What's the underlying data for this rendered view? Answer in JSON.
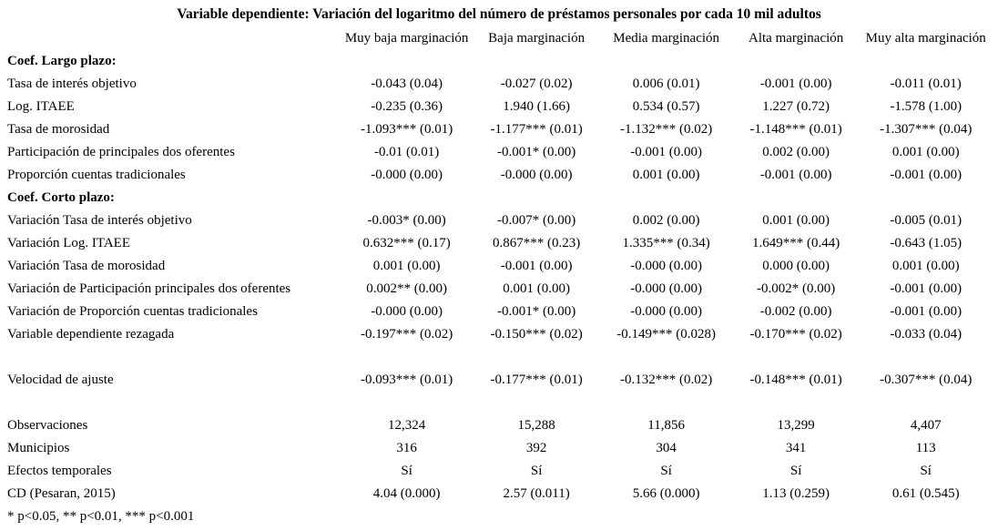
{
  "page": {
    "title": "Variable dependiente: Variación del logaritmo del número de préstamos personales por cada 10 mil adultos",
    "footnote": "* p<0.05, ** p<0.01, *** p<0.001"
  },
  "table": {
    "columns": [
      "Muy baja marginación",
      "Baja marginación",
      "Media marginación",
      "Alta marginación",
      "Muy alta marginación"
    ],
    "rows": [
      {
        "type": "section",
        "label": "Coef. Largo plazo:",
        "values": [
          "",
          "",
          "",
          "",
          ""
        ]
      },
      {
        "type": "data",
        "label": "Tasa de interés objetivo",
        "values": [
          "-0.043 (0.04)",
          "-0.027 (0.02)",
          "0.006 (0.01)",
          "-0.001 (0.00)",
          "-0.011 (0.01)"
        ]
      },
      {
        "type": "data",
        "label": "Log. ITAEE",
        "values": [
          "-0.235 (0.36)",
          "1.940 (1.66)",
          "0.534 (0.57)",
          "1.227 (0.72)",
          "-1.578 (1.00)"
        ]
      },
      {
        "type": "data",
        "label": "Tasa de morosidad",
        "values": [
          "-1.093*** (0.01)",
          "-1.177*** (0.01)",
          "-1.132*** (0.02)",
          "-1.148*** (0.01)",
          "-1.307*** (0.04)"
        ]
      },
      {
        "type": "data",
        "label": "Participación de principales dos oferentes",
        "values": [
          "-0.01 (0.01)",
          "-0.001* (0.00)",
          "-0.001 (0.00)",
          "0.002 (0.00)",
          "0.001 (0.00)"
        ]
      },
      {
        "type": "data",
        "label": "Proporción cuentas tradicionales",
        "values": [
          "-0.000 (0.00)",
          "-0.000 (0.00)",
          "0.001 (0.00)",
          "-0.001 (0.00)",
          "-0.001 (0.00)"
        ]
      },
      {
        "type": "section",
        "label": "Coef. Corto plazo:",
        "values": [
          "",
          "",
          "",
          "",
          ""
        ]
      },
      {
        "type": "data",
        "label": "Variación Tasa de interés objetivo",
        "values": [
          "-0.003* (0.00)",
          "-0.007* (0.00)",
          "0.002 (0.00)",
          "0.001 (0.00)",
          "-0.005 (0.01)"
        ]
      },
      {
        "type": "data",
        "label": "Variación Log. ITAEE",
        "values": [
          "0.632*** (0.17)",
          "0.867*** (0.23)",
          "1.335*** (0.34)",
          "1.649*** (0.44)",
          "-0.643 (1.05)"
        ]
      },
      {
        "type": "data",
        "label": "Variación Tasa de morosidad",
        "values": [
          "0.001 (0.00)",
          "-0.001 (0.00)",
          "-0.000 (0.00)",
          "0.000 (0.00)",
          "0.001 (0.00)"
        ]
      },
      {
        "type": "data",
        "label": "Variación de Participación principales dos oferentes",
        "values": [
          "0.002** (0.00)",
          "0.001 (0.00)",
          "-0.000 (0.00)",
          "-0.002* (0.00)",
          "-0.001 (0.00)"
        ]
      },
      {
        "type": "data",
        "label": "Variación de Proporción cuentas tradicionales",
        "values": [
          "-0.000 (0.00)",
          "-0.001* (0.00)",
          "-0.000 (0.00)",
          "-0.002 (0.00)",
          "-0.001 (0.00)"
        ]
      },
      {
        "type": "data",
        "label": "Variable dependiente rezagada",
        "values": [
          "-0.197*** (0.02)",
          "-0.150*** (0.02)",
          "-0.149*** (0.028)",
          "-0.170*** (0.02)",
          "-0.033 (0.04)"
        ]
      },
      {
        "type": "blank",
        "label": "",
        "values": [
          "",
          "",
          "",
          "",
          ""
        ]
      },
      {
        "type": "data",
        "label": "Velocidad de ajuste",
        "values": [
          "-0.093*** (0.01)",
          "-0.177*** (0.01)",
          "-0.132*** (0.02)",
          "-0.148*** (0.01)",
          "-0.307*** (0.04)"
        ]
      },
      {
        "type": "blank",
        "label": "",
        "values": [
          "",
          "",
          "",
          "",
          ""
        ]
      },
      {
        "type": "data",
        "label": "Observaciones",
        "values": [
          "12,324",
          "15,288",
          "11,856",
          "13,299",
          "4,407"
        ]
      },
      {
        "type": "data",
        "label": "Municipios",
        "values": [
          "316",
          "392",
          "304",
          "341",
          "113"
        ]
      },
      {
        "type": "data",
        "label": "Efectos temporales",
        "values": [
          "Sí",
          "Sí",
          "Sí",
          "Sí",
          "Sí"
        ]
      },
      {
        "type": "data",
        "label": "CD (Pesaran, 2015)",
        "values": [
          "4.04 (0.000)",
          "2.57 (0.011)",
          "5.66 (0.000)",
          "1.13 (0.259)",
          "0.61 (0.545)"
        ]
      }
    ]
  }
}
